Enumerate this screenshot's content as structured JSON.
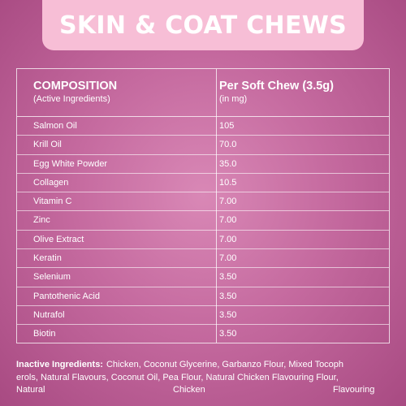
{
  "title": "SKIN & COAT CHEWS",
  "table": {
    "header_left": {
      "main": "COMPOSITION",
      "sub": "(Active Ingredients)"
    },
    "header_right": {
      "main": "Per Soft Chew (3.5g)",
      "sub": "(in mg)"
    },
    "rows": [
      {
        "name": "Salmon Oil",
        "value": "105"
      },
      {
        "name": "Krill Oil",
        "value": "70.0"
      },
      {
        "name": "Egg White Powder",
        "value": "35.0"
      },
      {
        "name": "Collagen",
        "value": "10.5"
      },
      {
        "name": "Vitamin C",
        "value": "7.00"
      },
      {
        "name": "Zinc",
        "value": "7.00"
      },
      {
        "name": "Olive Extract",
        "value": "7.00"
      },
      {
        "name": "Keratin",
        "value": "7.00"
      },
      {
        "name": "Selenium",
        "value": "3.50"
      },
      {
        "name": "Pantothenic Acid",
        "value": "3.50"
      },
      {
        "name": "Nutrafol",
        "value": "3.50"
      },
      {
        "name": "Biotin",
        "value": "3.50"
      }
    ]
  },
  "inactive": {
    "label": "Inactive Ingredients:",
    "line1": "Chicken, Coconut Glycerine, Garbanzo Flour, Mixed Tocoph",
    "line2": "erols, Natural Flavours, Coconut Oil, Pea Flour, Natural Chicken Flavouring Flour,",
    "line3_a": "Natural",
    "line3_b": "Chicken",
    "line3_c": "Flavouring"
  }
}
